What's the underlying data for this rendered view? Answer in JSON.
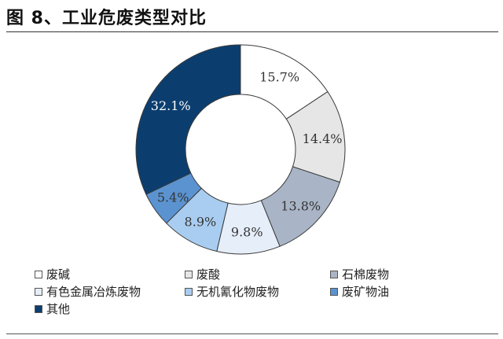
{
  "figure_title": "图 8、工业危废类型对比",
  "chart_data": {
    "type": "pie",
    "categories": [
      "废碱",
      "废酸",
      "石棉废物",
      "有色金属冶炼废物",
      "无机氰化物废物",
      "废矿物油",
      "其他"
    ],
    "values": [
      15.7,
      14.4,
      13.8,
      9.8,
      8.9,
      5.4,
      32.1
    ],
    "labels": [
      "15.7%",
      "14.4%",
      "13.8%",
      "9.8%",
      "8.9%",
      "5.4%",
      "32.1%"
    ],
    "colors": [
      "#ffffff",
      "#e6e6e6",
      "#a9b5c6",
      "#e6eefa",
      "#a9cdf0",
      "#5b93d0",
      "#0b3e6f"
    ],
    "label_colors": [
      "#333333",
      "#333333",
      "#333333",
      "#333333",
      "#333333",
      "#333333",
      "#ffffff"
    ],
    "donut": true,
    "legend_position": "bottom"
  }
}
